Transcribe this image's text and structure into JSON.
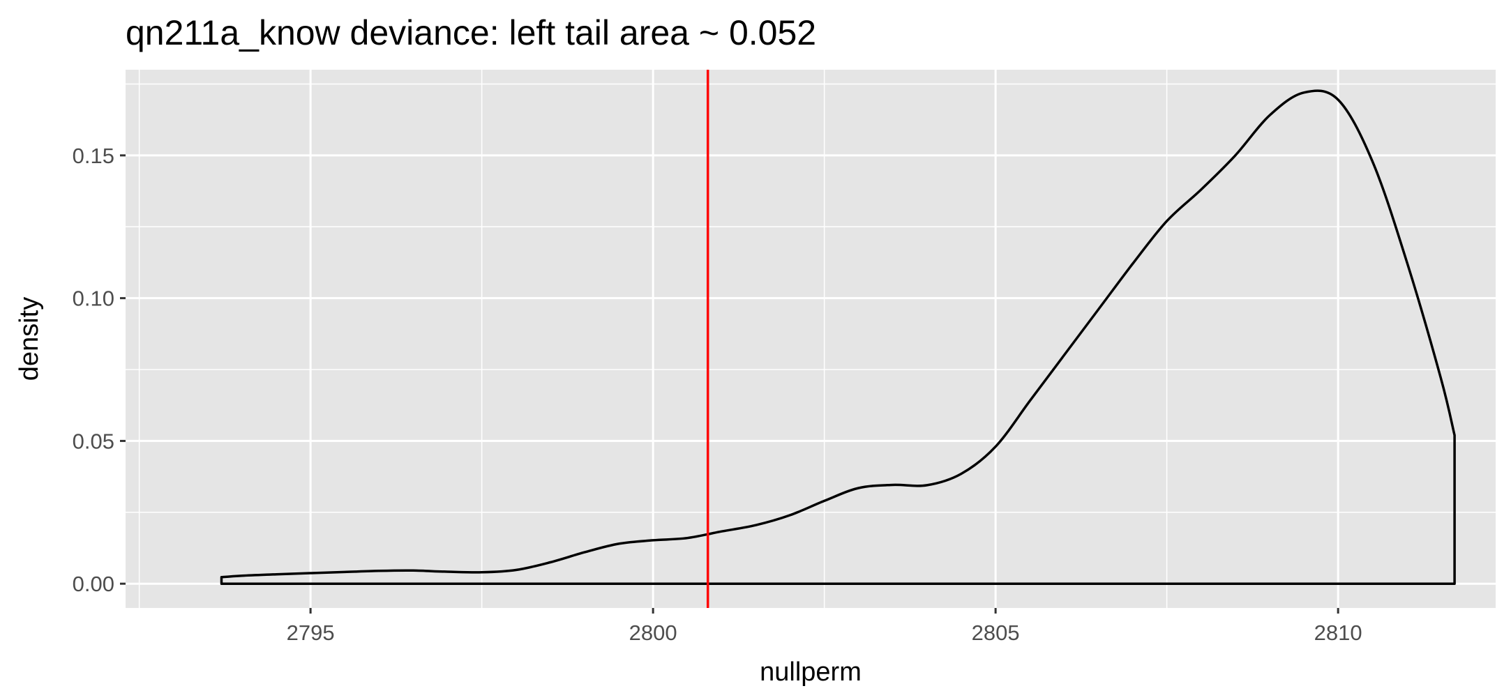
{
  "chart_data": {
    "type": "line",
    "title": "qn211a_know deviance: left tail area ~ 0.052",
    "xlabel": "nullperm",
    "ylabel": "density",
    "xlim": [
      2792.3,
      2812.3
    ],
    "ylim": [
      -0.0085,
      0.18
    ],
    "x_ticks": [
      2795,
      2800,
      2805,
      2810
    ],
    "x_tick_labels": [
      "2795",
      "2800",
      "2805",
      "2810"
    ],
    "y_ticks": [
      0.0,
      0.05,
      0.1,
      0.15
    ],
    "y_tick_labels": [
      "0.00",
      "0.05",
      "0.10",
      "0.15"
    ],
    "grid": true,
    "legend": "none",
    "panel_background": "#e5e5e5",
    "grid_color": "#ffffff",
    "series": [
      {
        "color": "#000000",
        "x": [
          2793.7,
          2794.0,
          2794.5,
          2795.0,
          2795.5,
          2796.0,
          2796.5,
          2797.0,
          2797.5,
          2798.0,
          2798.5,
          2799.0,
          2799.5,
          2800.0,
          2800.5,
          2801.0,
          2801.5,
          2802.0,
          2802.5,
          2803.0,
          2803.5,
          2804.0,
          2804.5,
          2805.0,
          2805.5,
          2806.0,
          2806.5,
          2807.0,
          2807.5,
          2808.0,
          2808.5,
          2809.0,
          2809.5,
          2810.0,
          2810.5,
          2811.0,
          2811.5,
          2811.7
        ],
        "y": [
          0.0023,
          0.0028,
          0.0033,
          0.0037,
          0.0041,
          0.0045,
          0.0046,
          0.0042,
          0.004,
          0.0048,
          0.0075,
          0.011,
          0.014,
          0.0152,
          0.016,
          0.0183,
          0.0205,
          0.024,
          0.029,
          0.0335,
          0.0346,
          0.0345,
          0.0385,
          0.048,
          0.064,
          0.08,
          0.096,
          0.112,
          0.127,
          0.138,
          0.15,
          0.164,
          0.172,
          0.1695,
          0.148,
          0.113,
          0.072,
          0.052
        ]
      }
    ],
    "reference_line": {
      "x": 2800.8,
      "color": "#ff0000"
    }
  }
}
